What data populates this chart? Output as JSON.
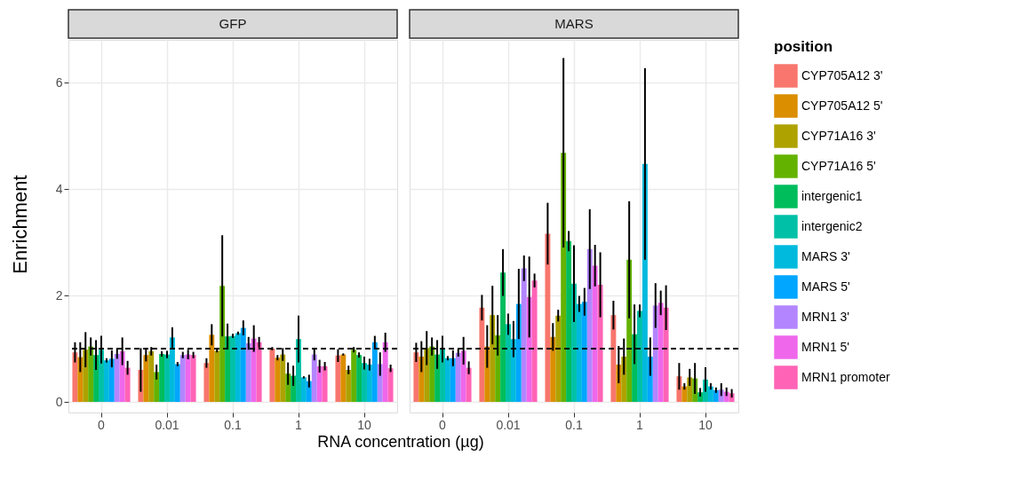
{
  "chart_data": [
    {
      "type": "bar",
      "title": "GFP",
      "xlabel": "RNA concentration (µg)",
      "ylabel": "Enrichment",
      "categories": [
        "0",
        "0.01",
        "0.1",
        "1",
        "10"
      ],
      "ylim": [
        -0.2,
        6.8
      ],
      "yticks": [
        0,
        2,
        4,
        6
      ],
      "grid": true,
      "ref_lines": [
        {
          "axis": "y",
          "value": 1,
          "line_style": "dashed",
          "color": "#000000"
        }
      ],
      "series": [
        {
          "color": "#F8766D",
          "values": [
            0.93,
            0.6,
            0.73,
            1.0,
            0.87
          ],
          "errors": [
            0.19,
            0.41,
            0.09,
            0.03,
            0.12
          ]
        },
        {
          "color": "#DB8E00",
          "values": [
            0.84,
            0.88,
            1.26,
            0.83,
            0.89
          ],
          "errors": [
            0.28,
            0.12,
            0.2,
            0.05,
            0.02
          ]
        },
        {
          "color": "#AEA200",
          "values": [
            0.98,
            0.95,
            0.96,
            0.89,
            0.6
          ],
          "errors": [
            0.33,
            0.08,
            0.03,
            0.12,
            0.08
          ]
        },
        {
          "color": "#64B200",
          "values": [
            1.04,
            0.56,
            2.18,
            0.53,
            0.98
          ],
          "errors": [
            0.17,
            0.14,
            0.95,
            0.21,
            0.05
          ]
        },
        {
          "color": "#00BD5C",
          "values": [
            0.88,
            0.9,
            1.23,
            0.49,
            0.88
          ],
          "errors": [
            0.28,
            0.05,
            0.24,
            0.19,
            0.05
          ]
        },
        {
          "color": "#00C1A7",
          "values": [
            0.98,
            0.89,
            1.24,
            1.18,
            0.73
          ],
          "errors": [
            0.26,
            0.07,
            0.04,
            0.44,
            0.12
          ]
        },
        {
          "color": "#00BADE",
          "values": [
            0.78,
            1.21,
            1.29,
            0.46,
            0.7
          ],
          "errors": [
            0.04,
            0.19,
            0.03,
            0.02,
            0.11
          ]
        },
        {
          "color": "#00A6FF",
          "values": [
            0.81,
            0.71,
            1.39,
            0.39,
            1.12
          ],
          "errors": [
            0.16,
            0.04,
            0.14,
            0.12,
            0.12
          ]
        },
        {
          "color": "#B385FF",
          "values": [
            0.9,
            0.88,
            1.1,
            0.89,
            0.71
          ],
          "errors": [
            0.09,
            0.06,
            0.12,
            0.11,
            0.22
          ]
        },
        {
          "color": "#EF67EB",
          "values": [
            0.95,
            0.89,
            1.19,
            0.67,
            1.12
          ],
          "errors": [
            0.26,
            0.09,
            0.25,
            0.12,
            0.18
          ]
        },
        {
          "color": "#FF63B6",
          "values": [
            0.64,
            0.88,
            1.12,
            0.67,
            0.63
          ],
          "errors": [
            0.13,
            0.06,
            0.1,
            0.08,
            0.07
          ]
        }
      ]
    },
    {
      "type": "bar",
      "title": "MARS",
      "legend_title": "position",
      "legend": "right",
      "tick_labels": "x",
      "categories": [
        "0",
        "0.01",
        "0.1",
        "1",
        "10"
      ],
      "ylim": [
        -0.2,
        6.8
      ],
      "yticks": [
        0,
        2,
        4,
        6
      ],
      "grid": true,
      "ref_lines": [
        {
          "axis": "y",
          "value": 1,
          "line_style": "dashed",
          "color": "#000000"
        }
      ],
      "series": [
        {
          "name": "CYP705A12 3'",
          "color": "#F8766D",
          "values": [
            0.93,
            1.77,
            3.16,
            1.63,
            0.48
          ],
          "errors": [
            0.18,
            0.24,
            0.58,
            0.27,
            0.25
          ]
        },
        {
          "name": "CYP705A12 5'",
          "color": "#DB8E00",
          "values": [
            0.85,
            1.04,
            1.22,
            0.7,
            0.29
          ],
          "errors": [
            0.29,
            0.4,
            0.26,
            0.35,
            0.06
          ]
        },
        {
          "name": "CYP71A16 3'",
          "color": "#AEA200",
          "values": [
            1.01,
            1.63,
            1.62,
            0.85,
            0.46
          ],
          "errors": [
            0.32,
            0.55,
            0.11,
            0.34,
            0.16
          ]
        },
        {
          "name": "CYP71A16 5'",
          "color": "#64B200",
          "values": [
            1.04,
            1.25,
            4.68,
            2.67,
            0.44
          ],
          "errors": [
            0.17,
            0.38,
            1.78,
            1.1,
            0.29
          ]
        },
        {
          "name": "intergenic1",
          "color": "#00BD5C",
          "values": [
            0.89,
            2.43,
            3.02,
            1.27,
            0.18
          ],
          "errors": [
            0.27,
            0.44,
            0.19,
            0.56,
            0.08
          ]
        },
        {
          "name": "intergenic2",
          "color": "#00C1A7",
          "values": [
            0.99,
            1.46,
            2.22,
            1.71,
            0.42
          ],
          "errors": [
            0.25,
            0.2,
            0.72,
            0.12,
            0.23
          ]
        },
        {
          "name": "MARS 3'",
          "color": "#00BADE",
          "values": [
            0.82,
            1.18,
            1.84,
            4.47,
            0.29
          ],
          "errors": [
            0.04,
            0.34,
            0.15,
            1.8,
            0.06
          ]
        },
        {
          "name": "MARS 5'",
          "color": "#00A6FF",
          "values": [
            0.82,
            1.84,
            1.88,
            0.85,
            0.22
          ],
          "errors": [
            0.15,
            0.66,
            0.26,
            0.36,
            0.05
          ]
        },
        {
          "name": "MRN1 3'",
          "color": "#B385FF",
          "values": [
            0.92,
            2.51,
            2.87,
            1.81,
            0.23
          ],
          "errors": [
            0.07,
            0.24,
            0.75,
            0.42,
            0.12
          ]
        },
        {
          "name": "MRN1 5'",
          "color": "#EF67EB",
          "values": [
            0.96,
            1.97,
            2.56,
            1.86,
            0.19
          ],
          "errors": [
            0.26,
            0.76,
            0.39,
            0.23,
            0.08
          ]
        },
        {
          "name": "MRN1 promoter",
          "color": "#FF63B6",
          "values": [
            0.64,
            2.28,
            2.2,
            1.77,
            0.16
          ],
          "errors": [
            0.12,
            0.13,
            0.61,
            0.42,
            0.08
          ]
        }
      ]
    }
  ]
}
